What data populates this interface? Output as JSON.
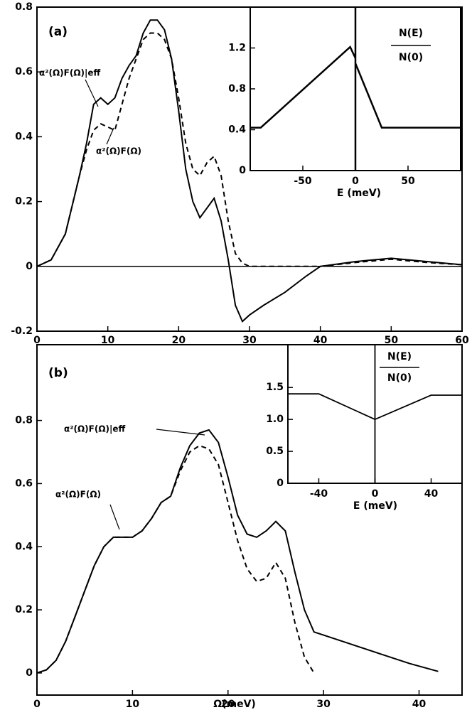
{
  "chart_data": [
    {
      "type": "line",
      "panel_label": "(a)",
      "annotations": [
        "α²(Ω)F(Ω)|eff",
        "α²(Ω)F(Ω)"
      ],
      "x": [
        0,
        2,
        4,
        6,
        7,
        8,
        9,
        10,
        11,
        12,
        13,
        14,
        15,
        16,
        17,
        18,
        19,
        20,
        21,
        22,
        23,
        24,
        25,
        26,
        27,
        28,
        29,
        30,
        32,
        35,
        38,
        40,
        45,
        50,
        55,
        60
      ],
      "series": [
        {
          "color": "#000000",
          "dash": false,
          "values": [
            0,
            0.02,
            0.1,
            0.28,
            0.38,
            0.5,
            0.52,
            0.5,
            0.52,
            0.58,
            0.62,
            0.65,
            0.72,
            0.76,
            0.76,
            0.73,
            0.64,
            0.48,
            0.3,
            0.2,
            0.15,
            0.18,
            0.21,
            0.14,
            0.02,
            -0.12,
            -0.17,
            -0.15,
            -0.12,
            -0.08,
            -0.03,
            0,
            0.015,
            0.025,
            0.015,
            0.005
          ]
        },
        {
          "color": "#000000",
          "dash": true,
          "values": [
            0,
            0.02,
            0.1,
            0.28,
            0.36,
            0.42,
            0.44,
            0.43,
            0.42,
            0.5,
            0.58,
            0.64,
            0.7,
            0.72,
            0.72,
            0.7,
            0.64,
            0.52,
            0.38,
            0.3,
            0.28,
            0.32,
            0.34,
            0.28,
            0.14,
            0.04,
            0.01,
            0,
            0,
            0,
            0,
            0,
            0.012,
            0.022,
            0.012,
            0.005
          ]
        }
      ],
      "xlim": [
        0,
        60
      ],
      "ylim": [
        -0.2,
        0.8
      ],
      "xticks": [
        0,
        10,
        20,
        30,
        40,
        50,
        60
      ],
      "yticks": [
        -0.2,
        0,
        0.2,
        0.4,
        0.6,
        0.8
      ],
      "zero_line": true
    },
    {
      "type": "line",
      "ratio_label": [
        "N(E)",
        "N(0)"
      ],
      "xlabel": "E (meV)",
      "x": [
        -100,
        -90,
        -5,
        0,
        0,
        0,
        0,
        25,
        100
      ],
      "series": [
        {
          "color": "#000000",
          "dash": false,
          "width": 2.5,
          "values": [
            0.42,
            0.42,
            1.21,
            1.1,
            1.6,
            0,
            1.05,
            0.42,
            0.42
          ]
        }
      ],
      "xlim": [
        -100,
        100
      ],
      "ylim": [
        0,
        1.6
      ],
      "xticks": [
        -50,
        0,
        50
      ],
      "yticks": [
        0,
        0.4,
        0.8,
        1.2
      ]
    },
    {
      "type": "line",
      "panel_label": "(b)",
      "xlabel": "Ω(meV)",
      "annotations": [
        "α²(Ω)F(Ω)|eff",
        "α²(Ω)F(Ω)"
      ],
      "x": [
        0,
        1,
        2,
        3,
        4,
        5,
        6,
        7,
        8,
        9,
        10,
        11,
        12,
        13,
        14,
        15,
        16,
        17,
        18,
        19,
        20,
        21,
        22,
        23,
        24,
        25,
        26,
        27,
        28,
        29,
        30,
        33,
        36,
        39,
        42
      ],
      "series": [
        {
          "color": "#000000",
          "dash": false,
          "values": [
            0,
            0.01,
            0.04,
            0.1,
            0.18,
            0.26,
            0.34,
            0.4,
            0.43,
            0.43,
            0.43,
            0.45,
            0.49,
            0.54,
            0.56,
            0.65,
            0.72,
            0.76,
            0.77,
            0.73,
            0.62,
            0.5,
            0.44,
            0.43,
            0.45,
            0.48,
            0.45,
            0.32,
            0.2,
            0.13,
            0.12,
            0.09,
            0.06,
            0.03,
            0.005
          ]
        },
        {
          "color": "#000000",
          "dash": true,
          "values": [
            0,
            0.01,
            0.04,
            0.1,
            0.18,
            0.26,
            0.34,
            0.4,
            0.43,
            0.43,
            0.43,
            0.45,
            0.49,
            0.54,
            0.56,
            0.64,
            0.7,
            0.72,
            0.71,
            0.66,
            0.54,
            0.42,
            0.33,
            0.29,
            0.3,
            0.35,
            0.3,
            0.16,
            0.05,
            0,
            null,
            null,
            null,
            null,
            null
          ]
        }
      ],
      "xlim": [
        0,
        44.5
      ],
      "ylim": [
        -0.07,
        1.04
      ],
      "xticks": [
        0,
        10,
        20,
        30,
        40
      ],
      "yticks": [
        0,
        0.2,
        0.4,
        0.6,
        0.8
      ]
    },
    {
      "type": "line",
      "ratio_label": [
        "N(E)",
        "N(0)"
      ],
      "xlabel": "E (meV)",
      "x": [
        -62,
        -40,
        0,
        0,
        0,
        0,
        40,
        62
      ],
      "series": [
        {
          "color": "#000000",
          "dash": false,
          "width": 1.8,
          "values": [
            1.4,
            1.4,
            1.0,
            2.17,
            0,
            1.0,
            1.38,
            1.38
          ]
        }
      ],
      "xlim": [
        -62,
        62
      ],
      "ylim": [
        0,
        2.17
      ],
      "xticks": [
        -40,
        0,
        40
      ],
      "yticks": [
        0,
        {
          "value": 0.5,
          "label": "0.5"
        },
        {
          "value": 1,
          "label": "1.0"
        },
        1.5
      ]
    }
  ]
}
